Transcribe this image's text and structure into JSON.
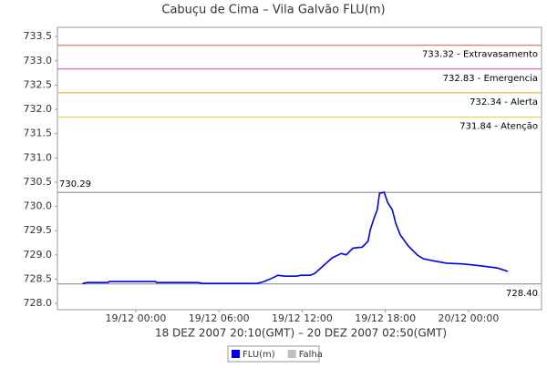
{
  "chart_data": {
    "type": "line",
    "title": "Cabuçu de Cima – Vila Galvão FLU(m)",
    "x_label": "18 DEZ 2007 20:10(GMT) – 20 DEZ 2007 02:50(GMT)",
    "x": [
      "18/12 20:10",
      "18/12 20:30",
      "18/12 22:00",
      "18/12 22:05",
      "19/12 01:25",
      "19/12 01:30",
      "19/12 04:30",
      "19/12 04:50",
      "19/12 08:45",
      "19/12 09:15",
      "19/12 09:55",
      "19/12 10:15",
      "19/12 10:45",
      "19/12 11:35",
      "19/12 11:55",
      "19/12 12:35",
      "19/12 12:55",
      "19/12 13:30",
      "19/12 14:10",
      "19/12 14:50",
      "19/12 15:10",
      "19/12 15:40",
      "19/12 16:20",
      "19/12 16:45",
      "19/12 16:55",
      "19/12 17:10",
      "19/12 17:25",
      "19/12 17:35",
      "19/12 17:55",
      "19/12 18:10",
      "19/12 18:30",
      "19/12 18:45",
      "19/12 19:05",
      "19/12 19:40",
      "19/12 20:20",
      "19/12 20:45",
      "19/12 21:25",
      "19/12 22:25",
      "19/12 23:45",
      "20/12 01:00",
      "20/12 02:05",
      "20/12 02:30",
      "20/12 02:50"
    ],
    "series": [
      {
        "name": "FLU(m)",
        "color": "#0000ee",
        "values": [
          728.41,
          728.43,
          728.43,
          728.45,
          728.45,
          728.43,
          728.43,
          728.41,
          728.41,
          728.45,
          728.53,
          728.58,
          728.56,
          728.56,
          728.58,
          728.58,
          728.62,
          728.77,
          728.94,
          729.03,
          729.0,
          729.14,
          729.16,
          729.28,
          729.52,
          729.74,
          729.93,
          730.27,
          730.29,
          730.08,
          729.93,
          729.65,
          729.41,
          729.18,
          728.99,
          728.92,
          728.88,
          728.83,
          728.81,
          728.77,
          728.73,
          728.69,
          728.66
        ]
      }
    ],
    "legend_extra": [
      {
        "name": "Falha",
        "color": "#c0c0c0"
      }
    ],
    "thresholds": [
      {
        "value": 733.32,
        "label": "733.32 - Extravasamento",
        "color": "#e05050"
      },
      {
        "value": 732.83,
        "label": "732.83 - Emergencia",
        "color": "#d040c0"
      },
      {
        "value": 732.34,
        "label": "732.34 - Alerta",
        "color": "#e8a020"
      },
      {
        "value": 731.84,
        "label": "731.84 - Atenção",
        "color": "#e8d040"
      },
      {
        "value": 730.29,
        "label": "730.29",
        "color": "#808080"
      },
      {
        "value": 728.4,
        "label": "728.40",
        "color": "#808080"
      }
    ],
    "xlim": [
      "18/12 18:21",
      "20/12 05:16"
    ],
    "xticks": [
      "19/12 00:00",
      "19/12 06:00",
      "19/12 12:00",
      "19/12 18:00",
      "20/12 00:00"
    ],
    "ylim": [
      727.87,
      733.69
    ],
    "yticks": [
      {
        "value": 728,
        "label": "728.0"
      },
      728.5,
      {
        "value": 729,
        "label": "729.0"
      },
      729.5,
      {
        "value": 730,
        "label": "730.0"
      },
      730.5,
      {
        "value": 731,
        "label": "731.0"
      },
      731.5,
      {
        "value": 732,
        "label": "732.0"
      },
      732.5,
      {
        "value": 733,
        "label": "733.0"
      },
      733.5
    ]
  }
}
